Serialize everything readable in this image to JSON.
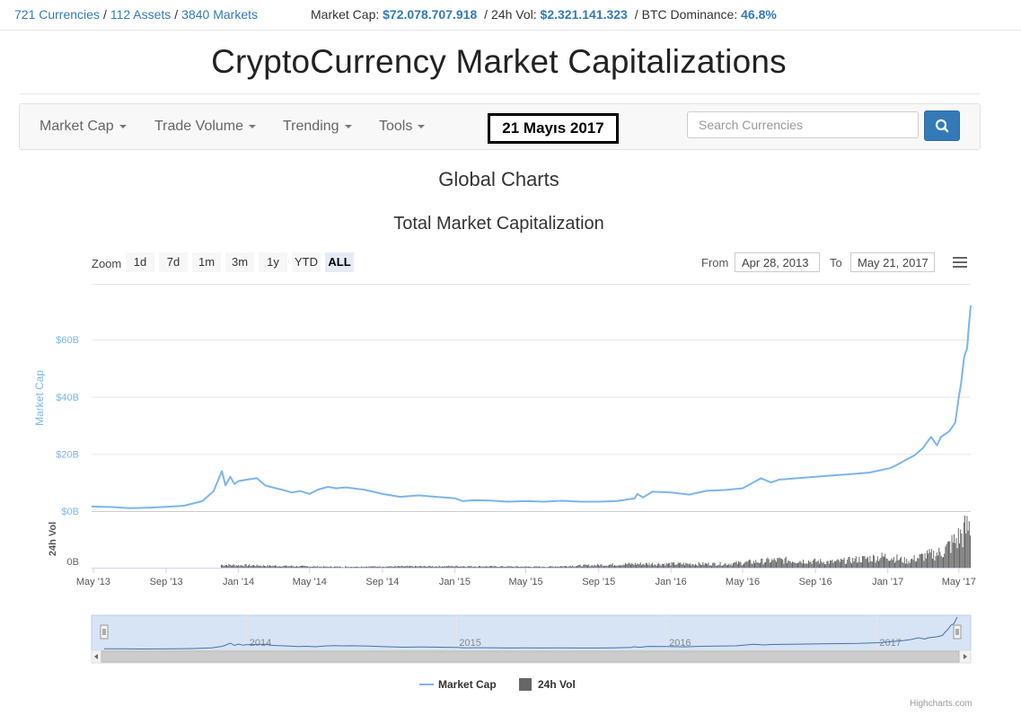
{
  "top_stats": {
    "currencies": "721 Currencies",
    "assets": "112 Assets",
    "markets": "3840 Markets",
    "market_cap_label": "Market Cap:",
    "market_cap_value": "$72.078.707.918",
    "vol_label": "24h Vol:",
    "vol_value": "$2.321.141.323",
    "dominance_label": "BTC Dominance:",
    "dominance_value": "46.8%"
  },
  "page_title": "CryptoCurrency Market Capitalizations",
  "nav": {
    "items": [
      "Market Cap",
      "Trade Volume",
      "Trending",
      "Tools"
    ],
    "date_overlay": "21 Mayıs 2017",
    "search_placeholder": "Search Currencies"
  },
  "section_title": "Global Charts",
  "chart_title": "Total Market Capitalization",
  "range_selector": {
    "zoom_label": "Zoom",
    "buttons": [
      "1d",
      "7d",
      "1m",
      "3m",
      "1y",
      "YTD",
      "ALL"
    ],
    "active": "ALL",
    "from_label": "From",
    "from_value": "Apr 28, 2013",
    "to_label": "To",
    "to_value": "May 21, 2017"
  },
  "credit": "Highcharts.com",
  "colors": {
    "accent": "#337ab7",
    "series_line": "#7cb5ec",
    "volume": "#666666"
  },
  "chart_data": {
    "type": "line",
    "ylabel": "Market Cap",
    "ylabel2": "24h Vol",
    "y_ticks": [
      "$0B",
      "$20B",
      "$40B",
      "$60B"
    ],
    "vol_ticks": [
      "0B"
    ],
    "ylim": [
      0,
      72
    ],
    "x_ticks": [
      "May '13",
      "Sep '13",
      "Jan '14",
      "May '14",
      "Sep '14",
      "Jan '15",
      "May '15",
      "Sep '15",
      "Jan '16",
      "May '16",
      "Sep '16",
      "Jan '17",
      "May '17"
    ],
    "navigator_ticks": [
      "2014",
      "2015",
      "2016",
      "2017"
    ],
    "legend": [
      "Market Cap",
      "24h Vol"
    ],
    "series": [
      {
        "name": "Market Cap",
        "x": [
          "2013-04-28",
          "2013-06-01",
          "2013-07-01",
          "2013-08-01",
          "2013-09-01",
          "2013-10-01",
          "2013-11-01",
          "2013-11-20",
          "2013-12-04",
          "2013-12-10",
          "2013-12-18",
          "2013-12-25",
          "2014-01-01",
          "2014-01-15",
          "2014-02-01",
          "2014-02-15",
          "2014-03-01",
          "2014-03-15",
          "2014-04-01",
          "2014-04-15",
          "2014-05-01",
          "2014-05-15",
          "2014-06-01",
          "2014-06-15",
          "2014-07-01",
          "2014-08-01",
          "2014-09-01",
          "2014-10-01",
          "2014-11-01",
          "2014-12-01",
          "2015-01-01",
          "2015-01-15",
          "2015-02-01",
          "2015-03-01",
          "2015-04-01",
          "2015-05-01",
          "2015-06-01",
          "2015-07-01",
          "2015-08-01",
          "2015-09-01",
          "2015-10-01",
          "2015-11-01",
          "2015-11-05",
          "2015-11-15",
          "2015-12-01",
          "2016-01-01",
          "2016-02-01",
          "2016-03-01",
          "2016-04-01",
          "2016-05-01",
          "2016-06-01",
          "2016-06-18",
          "2016-07-01",
          "2016-08-01",
          "2016-09-01",
          "2016-10-01",
          "2016-11-01",
          "2016-12-01",
          "2017-01-04",
          "2017-01-15",
          "2017-02-01",
          "2017-02-15",
          "2017-03-01",
          "2017-03-15",
          "2017-03-25",
          "2017-04-01",
          "2017-04-15",
          "2017-04-25",
          "2017-05-01",
          "2017-05-05",
          "2017-05-10",
          "2017-05-15",
          "2017-05-18",
          "2017-05-21"
        ],
        "values": [
          1.6,
          1.4,
          1.0,
          1.2,
          1.5,
          1.9,
          3.5,
          7.0,
          14.0,
          9.0,
          12.0,
          9.5,
          10.5,
          11.0,
          11.5,
          9.0,
          8.2,
          7.5,
          6.5,
          7.0,
          6.0,
          7.5,
          8.5,
          8.0,
          8.3,
          7.5,
          6.0,
          5.0,
          5.5,
          5.0,
          4.5,
          3.5,
          3.8,
          3.7,
          3.3,
          3.5,
          3.3,
          3.6,
          3.3,
          3.3,
          3.5,
          4.5,
          6.0,
          4.8,
          6.8,
          6.5,
          5.8,
          7.1,
          7.4,
          8.0,
          11.5,
          10.0,
          11.0,
          11.5,
          12.0,
          12.5,
          13.0,
          13.5,
          15.0,
          16.0,
          18.0,
          19.5,
          22.0,
          26.0,
          23.0,
          26.0,
          28.0,
          31.0,
          40.0,
          45.0,
          54.0,
          57.0,
          65.0,
          72.0
        ]
      },
      {
        "name": "24h Vol",
        "x": [
          "2013-12-01",
          "2014-06-01",
          "2015-01-01",
          "2015-06-01",
          "2015-11-01",
          "2016-01-01",
          "2016-04-01",
          "2016-07-01",
          "2016-10-01",
          "2017-01-01",
          "2017-02-01",
          "2017-03-01",
          "2017-04-01",
          "2017-05-01",
          "2017-05-21"
        ],
        "values": [
          0.15,
          0.05,
          0.08,
          0.05,
          0.2,
          0.2,
          0.2,
          0.4,
          0.3,
          0.6,
          0.35,
          0.6,
          0.8,
          1.6,
          2.3
        ]
      }
    ]
  }
}
